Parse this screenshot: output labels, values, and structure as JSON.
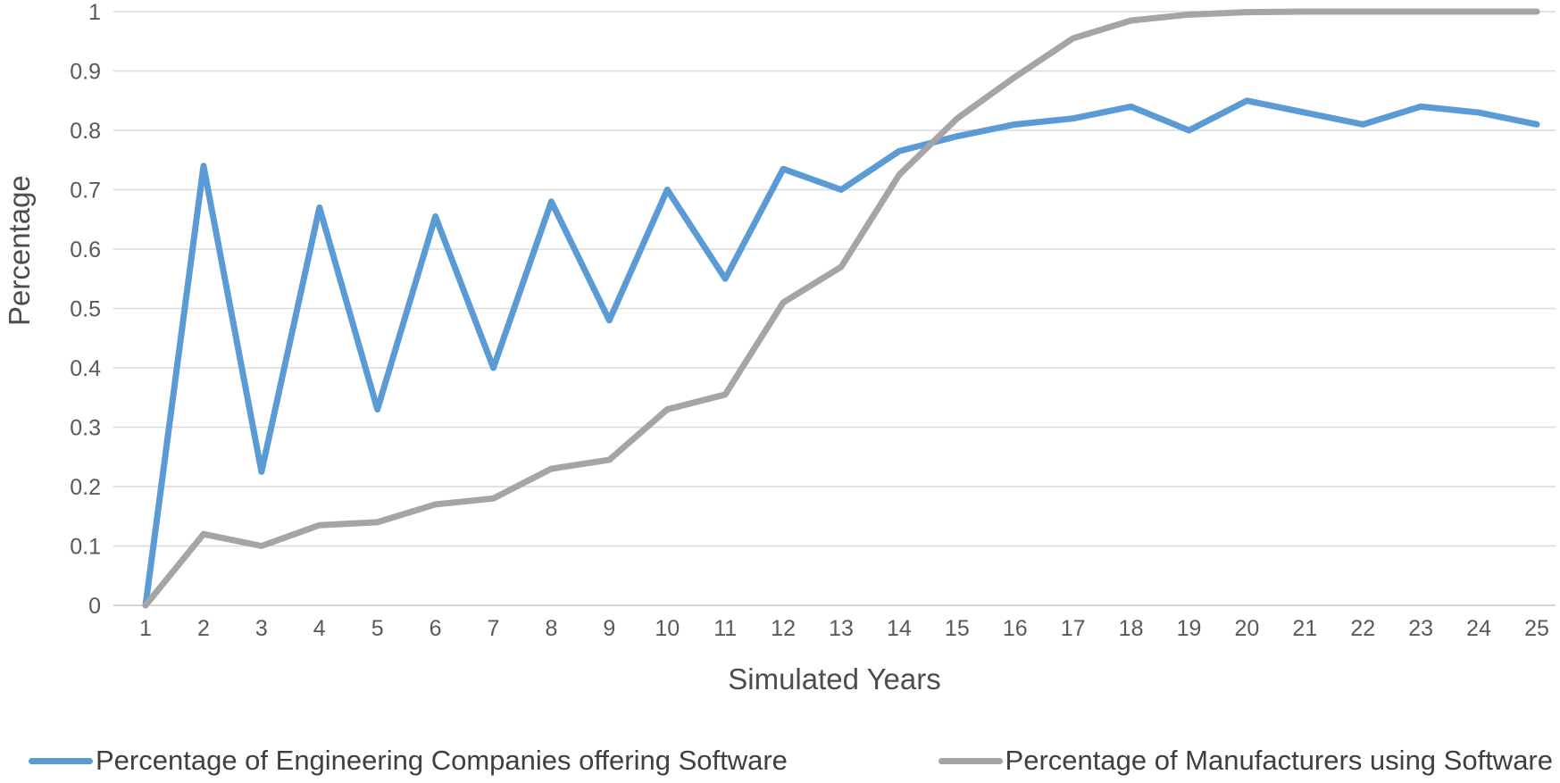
{
  "chart_data": {
    "type": "line",
    "x": [
      1,
      2,
      3,
      4,
      5,
      6,
      7,
      8,
      9,
      10,
      11,
      12,
      13,
      14,
      15,
      16,
      17,
      18,
      19,
      20,
      21,
      22,
      23,
      24,
      25
    ],
    "series": [
      {
        "name": "Percentage of Engineering Companies offering Software",
        "color": "#5B9BD5",
        "values": [
          0,
          0.74,
          0.225,
          0.67,
          0.33,
          0.655,
          0.4,
          0.68,
          0.48,
          0.7,
          0.55,
          0.735,
          0.7,
          0.765,
          0.79,
          0.81,
          0.82,
          0.84,
          0.8,
          0.85,
          0.83,
          0.81,
          0.84,
          0.83,
          0.81
        ]
      },
      {
        "name": "Percentage of Manufacturers using Software",
        "color": "#A5A5A5",
        "values": [
          0,
          0.12,
          0.1,
          0.135,
          0.14,
          0.17,
          0.18,
          0.23,
          0.245,
          0.33,
          0.355,
          0.51,
          0.57,
          0.725,
          0.82,
          0.89,
          0.955,
          0.985,
          0.995,
          0.999,
          1,
          1,
          1,
          1,
          1
        ]
      }
    ],
    "title": "",
    "xlabel": "Simulated Years",
    "ylabel": "Percentage",
    "xlim": [
      1,
      25
    ],
    "ylim": [
      0,
      1
    ],
    "ytick_labels": [
      "0",
      "0.1",
      "0.2",
      "0.3",
      "0.4",
      "0.5",
      "0.6",
      "0.7",
      "0.8",
      "0.9",
      "1"
    ],
    "grid": "horizontal",
    "legend_position": "bottom"
  },
  "colors": {
    "grid_line": "#D9D9D9",
    "axis_zero_line": "#C9C9C9",
    "tick_text": "#595959",
    "axis_title_text": "#4d4d4d",
    "legend_text": "#3f3f3f",
    "background": "#FFFFFF"
  }
}
